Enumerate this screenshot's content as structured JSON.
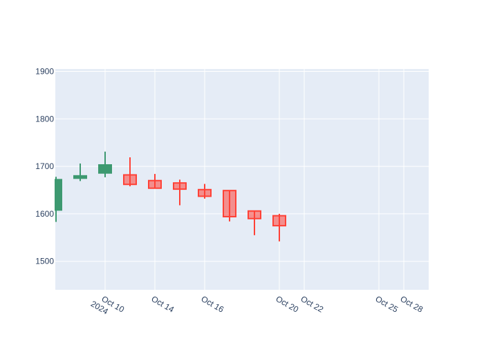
{
  "chart_data": {
    "type": "candlestick",
    "title": "",
    "xlabel": "",
    "ylabel": "",
    "ylim": [
      1440,
      1905
    ],
    "y_ticks": [
      1500,
      1600,
      1700,
      1800,
      1900
    ],
    "x_range_days": [
      0,
      25
    ],
    "x_ticks": [
      {
        "day": 2,
        "label": "Oct 10",
        "sublabel": "2024"
      },
      {
        "day": 4,
        "label": "Oct 14",
        "sublabel": ""
      },
      {
        "day": 6,
        "label": "Oct 16",
        "sublabel": ""
      },
      {
        "day": 9,
        "label": "Oct 20",
        "sublabel": ""
      },
      {
        "day": 10,
        "label": "Oct 22",
        "sublabel": ""
      },
      {
        "day": 13,
        "label": "Oct 25",
        "sublabel": ""
      },
      {
        "day": 14,
        "label": "Oct 28",
        "sublabel": ""
      }
    ],
    "grid": true,
    "increasing_color": "#3d9970",
    "decreasing_color": "#ff4136",
    "plot_bg": "#e5ecf6",
    "candles": [
      {
        "day": 0,
        "open": 1608,
        "high": 1678,
        "low": 1583,
        "close": 1672
      },
      {
        "day": 1,
        "open": 1675,
        "high": 1706,
        "low": 1669,
        "close": 1680
      },
      {
        "day": 2,
        "open": 1686,
        "high": 1731,
        "low": 1677,
        "close": 1703
      },
      {
        "day": 3,
        "open": 1682,
        "high": 1719,
        "low": 1658,
        "close": 1662
      },
      {
        "day": 4,
        "open": 1670,
        "high": 1684,
        "low": 1653,
        "close": 1654
      },
      {
        "day": 5,
        "open": 1665,
        "high": 1672,
        "low": 1618,
        "close": 1652
      },
      {
        "day": 6,
        "open": 1651,
        "high": 1663,
        "low": 1632,
        "close": 1637
      },
      {
        "day": 7,
        "open": 1649,
        "high": 1650,
        "low": 1584,
        "close": 1594
      },
      {
        "day": 8,
        "open": 1606,
        "high": 1606,
        "low": 1555,
        "close": 1590
      },
      {
        "day": 9,
        "open": 1596,
        "high": 1600,
        "low": 1542,
        "close": 1575
      }
    ]
  }
}
